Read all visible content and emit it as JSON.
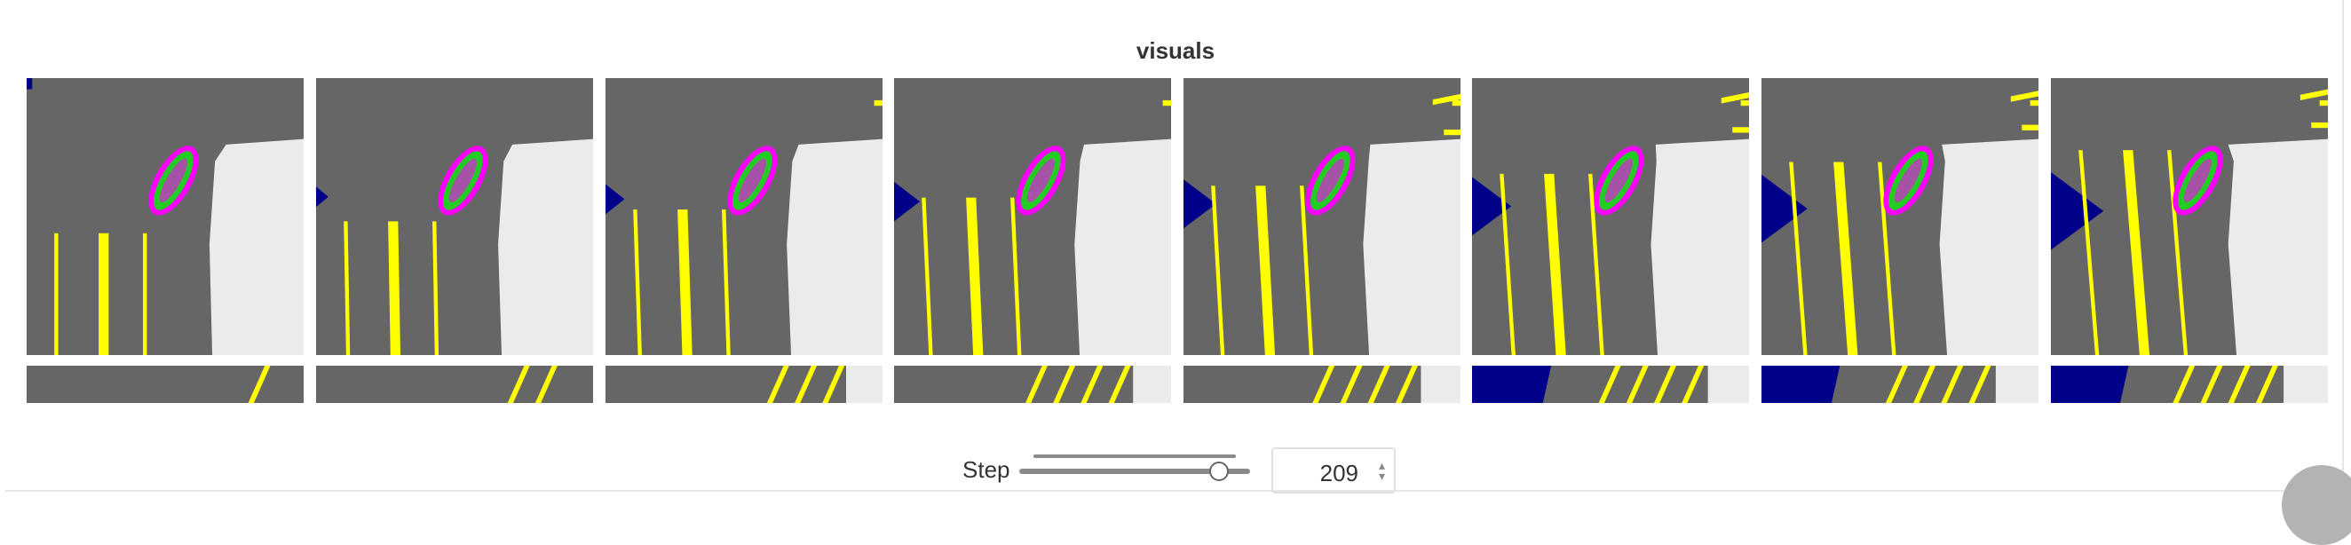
{
  "panel": {
    "title": "visuals",
    "frame_count": 8,
    "colors": {
      "road": "#666666",
      "offroad": "#ebebeb",
      "lane": "#ffff00",
      "agent_outline": "#ff00ff",
      "agent_fill": "#22cc22",
      "blue_region": "#000088"
    }
  },
  "controls": {
    "step_label": "Step",
    "step_value": "209",
    "slider_position": 0.9
  }
}
